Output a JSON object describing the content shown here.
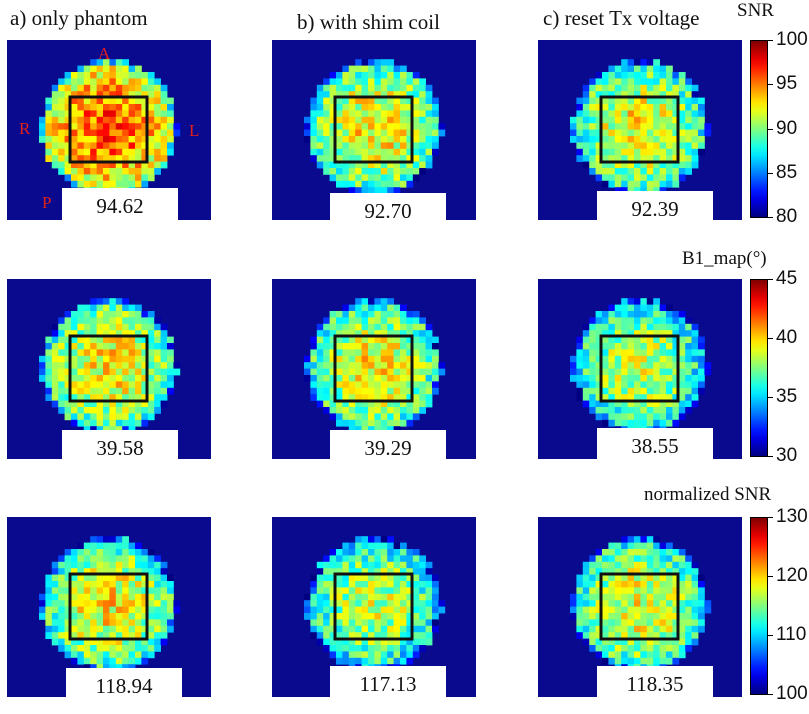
{
  "columns": [
    {
      "title": "a) only phantom"
    },
    {
      "title": "b) with shim coil"
    },
    {
      "title": "c) reset Tx voltage"
    }
  ],
  "orientation": {
    "anterior": "A",
    "posterior": "P",
    "right": "R",
    "left": "L",
    "color": "#e0201a"
  },
  "rows": [
    {
      "metric": "SNR",
      "colorbar": {
        "title": "SNR",
        "min": 80,
        "max": 100,
        "ticks": [
          "100",
          "95",
          "90",
          "85",
          "80"
        ]
      },
      "values": [
        "94.62",
        "92.70",
        "92.39"
      ],
      "levels": [
        94.62,
        92.7,
        92.39
      ]
    },
    {
      "metric": "B1_map",
      "colorbar": {
        "title": "B1_map(°)",
        "min": 30,
        "max": 45,
        "ticks": [
          "45",
          "40",
          "35",
          "30"
        ]
      },
      "values": [
        "39.58",
        "39.29",
        "38.55"
      ],
      "levels": [
        39.58,
        39.29,
        38.55
      ]
    },
    {
      "metric": "normalized SNR",
      "colorbar": {
        "title": "normalized SNR",
        "min": 100,
        "max": 130,
        "ticks": [
          "130",
          "120",
          "110",
          "100"
        ]
      },
      "values": [
        "118.94",
        "117.13",
        "118.35"
      ],
      "levels": [
        118.94,
        117.13,
        118.35
      ]
    }
  ],
  "colors": {
    "background_field": "#0a0a8f",
    "roi_box": "#111111"
  }
}
